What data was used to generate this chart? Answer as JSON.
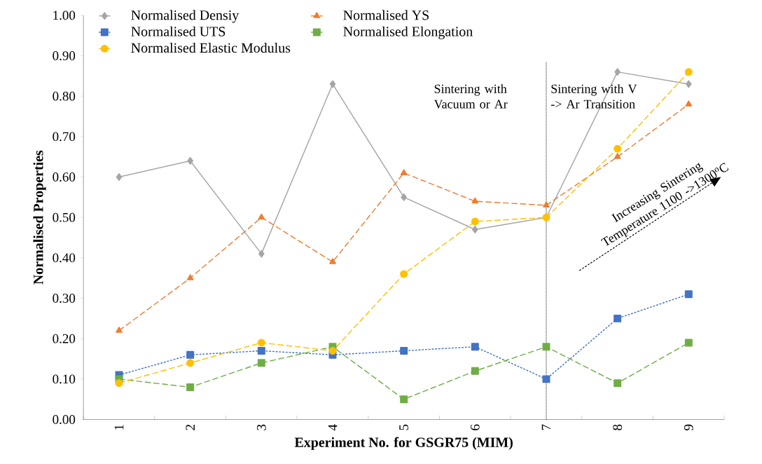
{
  "chart_data": {
    "type": "line",
    "xlabel": "Experiment No. for GSGR75 (MIM)",
    "ylabel": "Normalised Properties",
    "x": [
      1,
      2,
      3,
      4,
      5,
      6,
      7,
      8,
      9
    ],
    "xlim": [
      0.5,
      9.5
    ],
    "xticks": [
      1,
      2,
      3,
      4,
      5,
      6,
      7,
      8,
      9
    ],
    "ylim": [
      0,
      1
    ],
    "yticks": [
      {
        "value": 0,
        "label": "0.00"
      },
      {
        "value": 0.1,
        "label": "0.10"
      },
      {
        "value": 0.2,
        "label": "0.20"
      },
      {
        "value": 0.3,
        "label": "0.30"
      },
      {
        "value": 0.4,
        "label": "0.40"
      },
      {
        "value": 0.5,
        "label": "0.50"
      },
      {
        "value": 0.6,
        "label": "0.60"
      },
      {
        "value": 0.7,
        "label": "0.70"
      },
      {
        "value": 0.8,
        "label": "0.80"
      },
      {
        "value": 0.9,
        "label": "0.90"
      },
      {
        "value": 1,
        "label": "1.00"
      }
    ],
    "series": [
      {
        "name": "Normalised Densiy",
        "color": "#a5a5a5",
        "marker": "diamond",
        "line_style": "solid",
        "values": [
          0.6,
          0.64,
          0.41,
          0.83,
          0.55,
          0.47,
          0.5,
          0.86,
          0.83
        ]
      },
      {
        "name": "Normalised YS",
        "color": "#ed7d31",
        "marker": "triangle",
        "line_style": "dashed",
        "values": [
          0.22,
          0.35,
          0.5,
          0.39,
          0.61,
          0.54,
          0.53,
          0.65,
          0.78
        ]
      },
      {
        "name": "Normalised UTS",
        "color": "#4472c4",
        "marker": "square",
        "line_style": "dotted",
        "values": [
          0.11,
          0.16,
          0.17,
          0.16,
          0.17,
          0.18,
          0.1,
          0.25,
          0.31
        ]
      },
      {
        "name": "Normalised Elongation",
        "color": "#70ad47",
        "marker": "square",
        "line_style": "dashed",
        "values": [
          0.1,
          0.08,
          0.14,
          0.18,
          0.05,
          0.12,
          0.18,
          0.09,
          0.19
        ]
      },
      {
        "name": "Normalised Elastic Modulus",
        "color": "#ffc000",
        "marker": "circle",
        "line_style": "dashed",
        "values": [
          0.09,
          0.14,
          0.19,
          0.17,
          0.36,
          0.49,
          0.5,
          0.67,
          0.86
        ]
      }
    ],
    "ref_lines": [
      {
        "axis": "x",
        "value": 7,
        "color": "#000000",
        "line_style": "dotted"
      }
    ],
    "annotations": [
      "Sintering with Vacuum or Ar",
      "Sintering with V -> Ar Transition",
      "Increasing Sintering Temperature 1100 ->1300$^{o}$C"
    ],
    "legend": "top",
    "grid": false
  }
}
